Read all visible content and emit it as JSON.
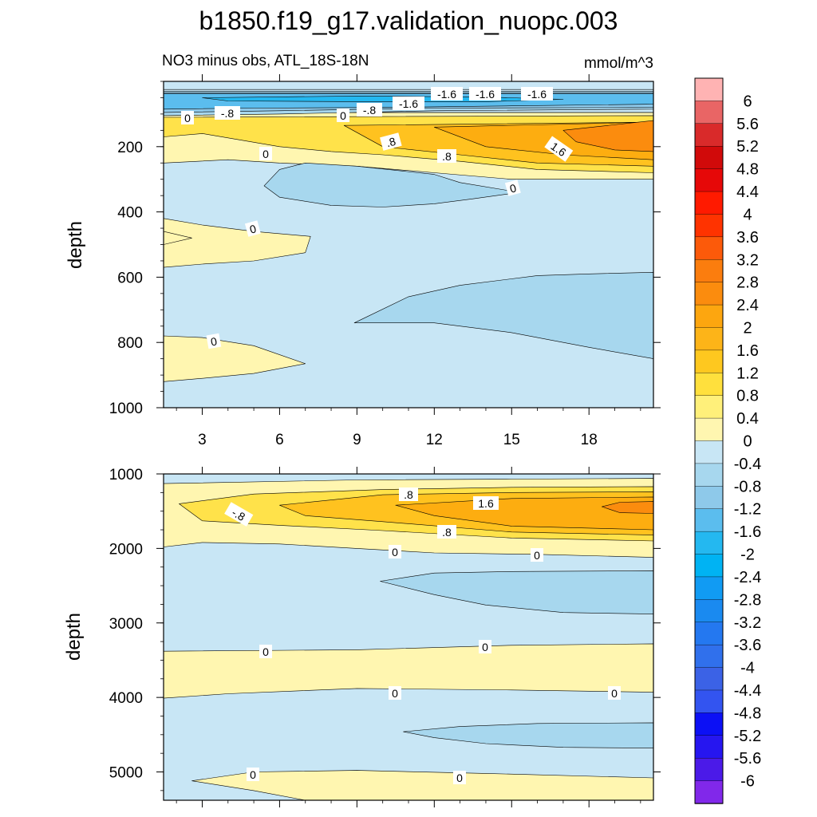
{
  "figure": {
    "title": "b1850.f19_g17.validation_nuopc.003",
    "subtitle_left": "NO3 minus obs, ATL_18S-18N",
    "subtitle_right": "mmol/m^3"
  },
  "colors": {
    "frame": "#000000",
    "pale_yellow": "#fff6b0",
    "yellow": "#ffe24a",
    "gold": "#ffc21f",
    "amber": "#fdad10",
    "orange": "#fb8c0e",
    "light_blue": "#c8e6f5",
    "mid_blue": "#a7d7ee",
    "blue": "#8ec9ea",
    "sky": "#5bbdee",
    "deep_blue": "#24b8f0"
  },
  "chart_data": [
    {
      "type": "heatmap",
      "panel": "upper",
      "title": "NO3 minus obs, ATL_18S-18N",
      "units": "mmol/m^3",
      "xlabel": "",
      "ylabel": "depth",
      "xlim": [
        1.5,
        20.5
      ],
      "ylim": [
        1000,
        0
      ],
      "x_ticks": [
        3,
        6,
        9,
        12,
        15,
        18
      ],
      "y_ticks": [
        200,
        400,
        600,
        800,
        1000
      ],
      "fields": [
        {
          "level": 0.4,
          "color": "pale_yellow",
          "points": [
            [
              1.5,
              95
            ],
            [
              20.5,
              95
            ],
            [
              20.5,
              300
            ],
            [
              15,
              300
            ],
            [
              12,
              280
            ],
            [
              9,
              260
            ],
            [
              6,
              250
            ],
            [
              4,
              240
            ],
            [
              1.5,
              250
            ]
          ]
        },
        {
          "level": 0.8,
          "color": "yellow",
          "points": [
            [
              1.5,
              110
            ],
            [
              20.5,
              105
            ],
            [
              20.5,
              280
            ],
            [
              16,
              270
            ],
            [
              13,
              245
            ],
            [
              10,
              225
            ],
            [
              8,
              215
            ],
            [
              6,
              200
            ],
            [
              4.5,
              180
            ],
            [
              3,
              160
            ],
            [
              1.5,
              170
            ]
          ]
        },
        {
          "level": 1.2,
          "color": "gold",
          "points": [
            [
              8.5,
              135
            ],
            [
              20.5,
              125
            ],
            [
              20.5,
              260
            ],
            [
              16,
              250
            ],
            [
              13,
              225
            ],
            [
              10,
              200
            ]
          ]
        },
        {
          "level": 1.6,
          "color": "amber",
          "points": [
            [
              12,
              140
            ],
            [
              20.5,
              125
            ],
            [
              20.5,
              240
            ],
            [
              17,
              225
            ],
            [
              14,
              200
            ]
          ]
        },
        {
          "level": 2.4,
          "color": "orange",
          "points": [
            [
              17,
              150
            ],
            [
              20.5,
              120
            ],
            [
              20.5,
              215
            ],
            [
              19,
              210
            ],
            [
              17.5,
              185
            ]
          ]
        },
        {
          "level": 0.4,
          "color": "pale_yellow",
          "points": [
            [
              1.5,
              420
            ],
            [
              3,
              440
            ],
            [
              5,
              460
            ],
            [
              7.2,
              475
            ],
            [
              7,
              525
            ],
            [
              5,
              550
            ],
            [
              3,
              560
            ],
            [
              1.5,
              570
            ]
          ]
        },
        {
          "level": 0.4,
          "color": "pale_yellow",
          "points": [
            [
              1.5,
              780
            ],
            [
              3,
              785
            ],
            [
              5,
              810
            ],
            [
              7,
              865
            ],
            [
              5,
              895
            ],
            [
              3,
              910
            ],
            [
              1.5,
              920
            ]
          ]
        },
        {
          "level": 0.4,
          "color": "pale_yellow",
          "points": [
            [
              1.5,
              460
            ],
            [
              2.6,
              480
            ],
            [
              1.5,
              500
            ]
          ]
        },
        {
          "level": -0.4,
          "color": "light_blue",
          "points": [
            [
              1.5,
              25
            ],
            [
              20.5,
              25
            ],
            [
              20.5,
              95
            ],
            [
              1.5,
              95
            ]
          ]
        },
        {
          "level": -0.8,
          "color": "mid_blue",
          "points": [
            [
              1.5,
              30
            ],
            [
              20.5,
              30
            ],
            [
              20.5,
              85
            ],
            [
              12,
              90
            ],
            [
              6,
              100
            ],
            [
              1.5,
              105
            ]
          ]
        },
        {
          "level": -1.2,
          "color": "blue",
          "points": [
            [
              1.5,
              35
            ],
            [
              20.5,
              35
            ],
            [
              20.5,
              80
            ],
            [
              12,
              82
            ],
            [
              6,
              90
            ],
            [
              1.5,
              95
            ]
          ]
        },
        {
          "level": -1.6,
          "color": "sky",
          "points": [
            [
              1.5,
              38
            ],
            [
              20.5,
              38
            ],
            [
              20.5,
              70
            ],
            [
              15,
              75
            ],
            [
              10,
              80
            ],
            [
              5,
              82
            ],
            [
              1.5,
              85
            ]
          ]
        },
        {
          "level": -2.0,
          "color": "deep_blue",
          "points": [
            [
              3,
              50
            ],
            [
              9,
              45
            ],
            [
              14,
              48
            ],
            [
              17,
              55
            ],
            [
              14,
              62
            ],
            [
              9,
              62
            ],
            [
              4,
              60
            ]
          ]
        },
        {
          "level": -0.8,
          "color": "mid_blue",
          "points": [
            [
              5.4,
              320
            ],
            [
              6,
              270
            ],
            [
              7,
              250
            ],
            [
              9,
              260
            ],
            [
              12,
              285
            ],
            [
              13,
              310
            ],
            [
              15.3,
              340
            ],
            [
              13.5,
              360
            ],
            [
              12,
              375
            ],
            [
              10,
              385
            ],
            [
              8,
              380
            ],
            [
              6,
              355
            ]
          ]
        },
        {
          "level": -0.8,
          "color": "mid_blue",
          "points": [
            [
              8.9,
              740
            ],
            [
              11,
              660
            ],
            [
              13,
              625
            ],
            [
              16,
              595
            ],
            [
              18,
              590
            ],
            [
              20.5,
              585
            ],
            [
              20.5,
              850
            ],
            [
              18,
              815
            ],
            [
              15,
              770
            ],
            [
              12,
              740
            ]
          ]
        }
      ],
      "contour_labels": [
        "0",
        "-.8",
        "0",
        "-.8",
        "-1.6",
        "-1.6",
        "-1.6",
        "-1.6",
        ".8",
        ".8",
        "1.6",
        "0",
        "0",
        "0",
        "0"
      ]
    },
    {
      "type": "heatmap",
      "panel": "lower",
      "title": "",
      "units": "mmol/m^3",
      "xlabel": "",
      "ylabel": "depth",
      "xlim": [
        1.5,
        20.5
      ],
      "ylim": [
        5380,
        1000
      ],
      "x_ticks": [
        3,
        6,
        9,
        12,
        15,
        18
      ],
      "y_ticks": [
        1000,
        2000,
        3000,
        4000,
        5000
      ],
      "fields": [
        {
          "level": 0.4,
          "color": "pale_yellow",
          "points": [
            [
              1.5,
              1130
            ],
            [
              9,
              1080
            ],
            [
              15,
              1070
            ],
            [
              20.5,
              1060
            ],
            [
              20.5,
              2120
            ],
            [
              16,
              2080
            ],
            [
              12,
              2060
            ],
            [
              9,
              2000
            ],
            [
              6,
              1940
            ],
            [
              3,
              1920
            ],
            [
              1.5,
              1980
            ]
          ]
        },
        {
          "level": 0.8,
          "color": "yellow",
          "points": [
            [
              2.1,
              1400
            ],
            [
              5,
              1270
            ],
            [
              10,
              1210
            ],
            [
              15,
              1180
            ],
            [
              20.5,
              1170
            ],
            [
              20.5,
              1900
            ],
            [
              15,
              1860
            ],
            [
              10,
              1760
            ],
            [
              6,
              1690
            ],
            [
              3,
              1630
            ]
          ]
        },
        {
          "level": 1.2,
          "color": "gold",
          "points": [
            [
              6,
              1420
            ],
            [
              10,
              1280
            ],
            [
              15,
              1250
            ],
            [
              20.5,
              1240
            ],
            [
              20.5,
              1820
            ],
            [
              15,
              1780
            ],
            [
              10,
              1640
            ],
            [
              7,
              1560
            ]
          ]
        },
        {
          "level": 1.6,
          "color": "amber",
          "points": [
            [
              10.5,
              1420
            ],
            [
              15,
              1330
            ],
            [
              20.5,
              1310
            ],
            [
              20.5,
              1750
            ],
            [
              15,
              1700
            ],
            [
              12,
              1560
            ]
          ]
        },
        {
          "level": 2.0,
          "color": "orange",
          "points": [
            [
              18.5,
              1440
            ],
            [
              19.2,
              1380
            ],
            [
              20.5,
              1370
            ],
            [
              20.5,
              1530
            ],
            [
              19.2,
              1520
            ]
          ]
        },
        {
          "level": 0.4,
          "color": "pale_yellow",
          "points": [
            [
              1.5,
              3380
            ],
            [
              9,
              3360
            ],
            [
              15,
              3300
            ],
            [
              20.5,
              3280
            ],
            [
              20.5,
              3930
            ],
            [
              15,
              3900
            ],
            [
              9,
              3880
            ],
            [
              4,
              3950
            ],
            [
              1.5,
              4010
            ]
          ]
        },
        {
          "level": 0.4,
          "color": "pale_yellow",
          "points": [
            [
              2.6,
              5120
            ],
            [
              5,
              5000
            ],
            [
              9,
              4980
            ],
            [
              14,
              5020
            ],
            [
              20.5,
              5080
            ],
            [
              20.5,
              5380
            ],
            [
              7,
              5380
            ],
            [
              5,
              5250
            ]
          ]
        },
        {
          "level": -0.8,
          "color": "mid_blue",
          "points": [
            [
              9.9,
              2440
            ],
            [
              12,
              2330
            ],
            [
              15,
              2310
            ],
            [
              20.5,
              2300
            ],
            [
              20.5,
              2880
            ],
            [
              17,
              2860
            ],
            [
              14,
              2760
            ],
            [
              12,
              2620
            ]
          ]
        },
        {
          "level": -0.8,
          "color": "mid_blue",
          "points": [
            [
              10.8,
              4460
            ],
            [
              13,
              4390
            ],
            [
              16,
              4350
            ],
            [
              20.5,
              4340
            ],
            [
              20.5,
              4680
            ],
            [
              17,
              4670
            ],
            [
              14,
              4620
            ],
            [
              12,
              4540
            ]
          ]
        }
      ],
      "contour_labels": [
        ".8",
        "-.8",
        "1.6",
        ".8",
        "0",
        "0",
        "0",
        "0",
        "0",
        "0",
        "0",
        "0"
      ]
    }
  ],
  "colorbar": {
    "levels": [
      "6",
      "5.6",
      "5.2",
      "4.8",
      "4.4",
      "4",
      "3.6",
      "3.2",
      "2.8",
      "2.4",
      "2",
      "1.6",
      "1.2",
      "0.8",
      "0.4",
      "0",
      "-0.4",
      "-0.8",
      "-1.2",
      "-1.6",
      "-2",
      "-2.4",
      "-2.8",
      "-3.2",
      "-3.6",
      "-4",
      "-4.4",
      "-4.8",
      "-5.2",
      "-5.6",
      "-6"
    ],
    "colors": [
      "#ffb3b3",
      "#e96565",
      "#d92a2a",
      "#d10a0a",
      "#e60808",
      "#ff1a00",
      "#ff3300",
      "#fc5a0a",
      "#fb7d0e",
      "#fb8c0e",
      "#fda60f",
      "#fdb418",
      "#fec81f",
      "#ffe03d",
      "#fff07a",
      "#fff6b0",
      "#c8e6f5",
      "#a7d7ee",
      "#8ec9ea",
      "#5bbdee",
      "#24b8f0",
      "#00b3f3",
      "#119bf3",
      "#1a8af0",
      "#2478f0",
      "#3070ec",
      "#3b62e6",
      "#3354f0",
      "#0c10f5",
      "#2616f0",
      "#4b1ae8",
      "#8128ea"
    ]
  }
}
